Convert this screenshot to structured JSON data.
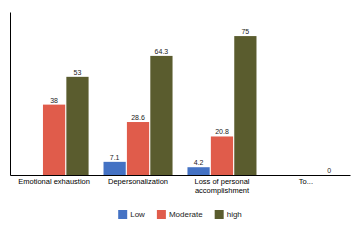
{
  "chart_data": {
    "type": "bar",
    "categories": [
      "Emotional exhaustion",
      "Depersonalization",
      "Loss of personal\naccomplishment",
      "To..."
    ],
    "series": [
      {
        "name": "Low",
        "color": "#4472c4",
        "values": [
          0,
          7.1,
          4.2,
          0
        ],
        "value_labels": [
          null,
          "7.1",
          "4.2",
          null
        ]
      },
      {
        "name": "Moderate",
        "color": "#e05c4b",
        "values": [
          38,
          28.6,
          20.8,
          0
        ],
        "value_labels": [
          "38",
          "28.6",
          "20.8",
          null
        ]
      },
      {
        "name": "high",
        "color": "#5a5c2e",
        "values": [
          53,
          64.3,
          75,
          0
        ],
        "value_labels": [
          "53",
          "64.3",
          "75",
          "0"
        ]
      }
    ],
    "ylim": [
      0,
      88
    ],
    "data_labels": true,
    "tick_labels": "x",
    "legend": "bottom",
    "grid": false
  }
}
